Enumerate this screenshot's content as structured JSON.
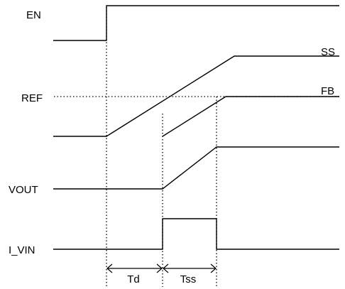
{
  "signals": {
    "en": "EN",
    "ss": "SS",
    "ref": "REF",
    "fb": "FB",
    "vout": "VOUT",
    "ivin": "I_VIN"
  },
  "timings": {
    "td": "Td",
    "tss": "Tss"
  }
}
